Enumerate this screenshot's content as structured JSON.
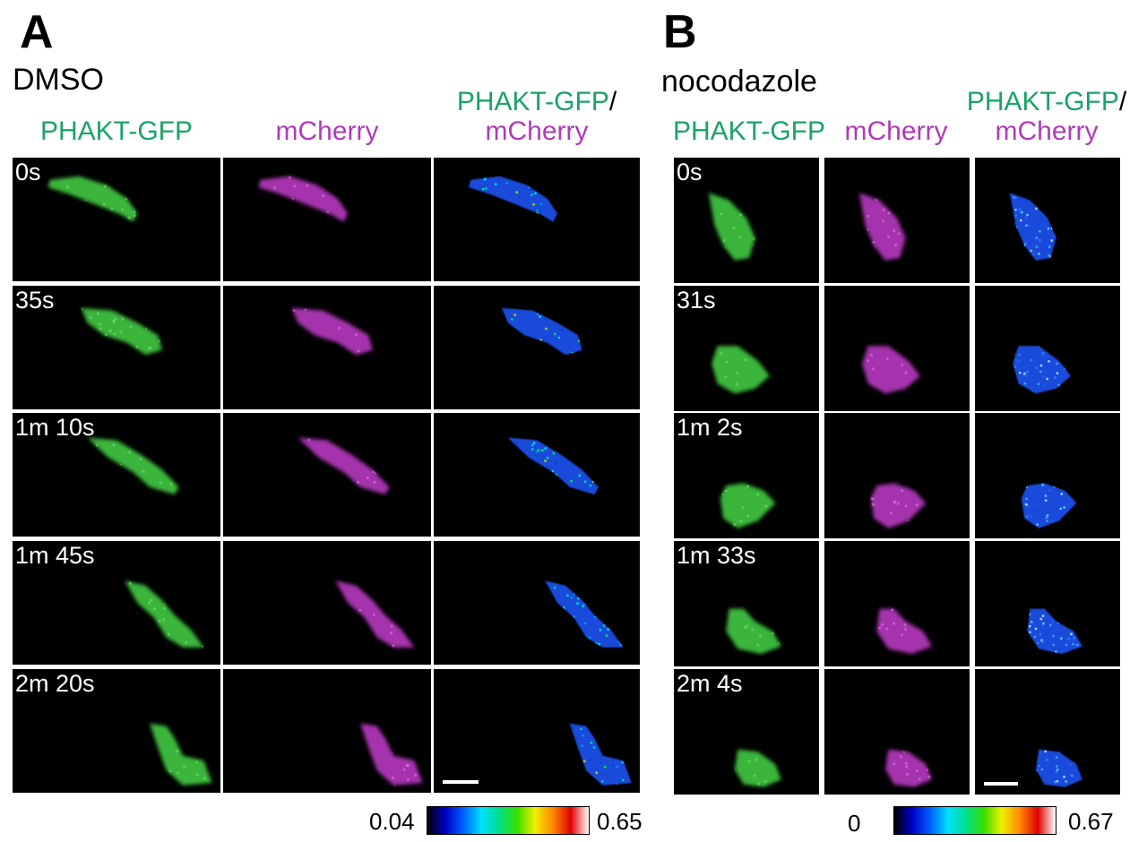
{
  "panels": [
    {
      "letter": "A",
      "condition": "DMSO",
      "columns": {
        "gfp": "PHAKT-GFP",
        "mcherry": "mCherry",
        "ratio_top": "PHAKT-GFP",
        "ratio_slash": "/",
        "ratio_bottom": "mCherry"
      },
      "timepoints": [
        "0s",
        "35s",
        "1m 10s",
        "1m 45s",
        "2m 20s"
      ],
      "colorbar": {
        "min": "0.04",
        "max": "0.65"
      }
    },
    {
      "letter": "B",
      "condition": "nocodazole",
      "columns": {
        "gfp": "PHAKT-GFP",
        "mcherry": "mCherry",
        "ratio_top": "PHAKT-GFP",
        "ratio_slash": "/",
        "ratio_bottom": "mCherry"
      },
      "timepoints": [
        "0s",
        "31s",
        "1m 2s",
        "1m 33s",
        "2m 4s"
      ],
      "colorbar": {
        "min": "0",
        "max": "0.67"
      }
    }
  ],
  "colors": {
    "gfp_label": "#1aa365",
    "mcherry_label": "#b03ab8",
    "gfp_signal": "#3fbf3f",
    "mcherry_signal": "#c23ccc",
    "ratio_cell_base": "#1e4fe6",
    "colormap": [
      "#000000",
      "#0000c8",
      "#0060ff",
      "#00e0ff",
      "#00e08a",
      "#3adc00",
      "#f0f000",
      "#ff8800",
      "#e00000",
      "#ffffff"
    ]
  }
}
